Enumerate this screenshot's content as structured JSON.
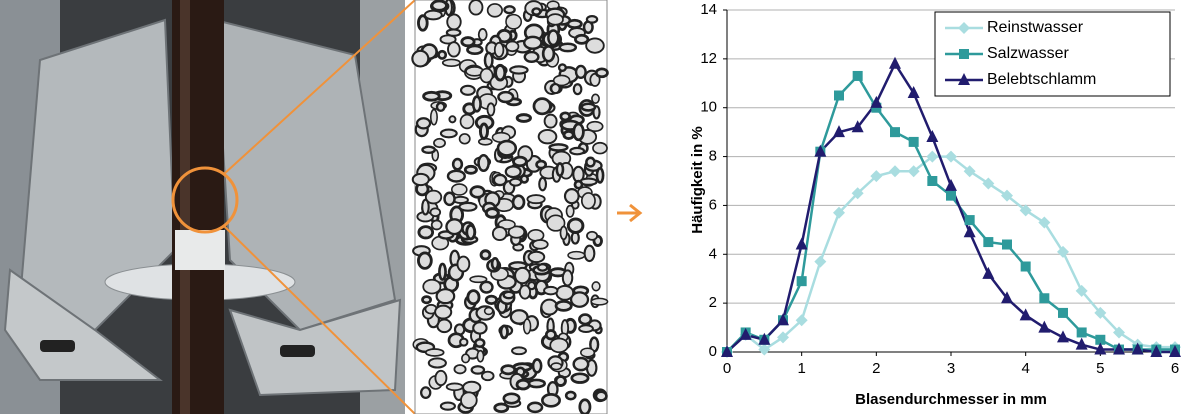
{
  "chart_data": {
    "type": "line",
    "xlabel": "Blasendurchmesser in mm",
    "ylabel": "Häufigkeit  in %",
    "x": [
      0,
      0.25,
      0.5,
      0.75,
      1,
      1.25,
      1.5,
      1.75,
      2,
      2.25,
      2.5,
      2.75,
      3,
      3.25,
      3.5,
      3.75,
      4,
      4.25,
      4.5,
      4.75,
      5,
      5.25,
      5.5,
      5.75,
      6
    ],
    "series": [
      {
        "name": "Reinstwasser",
        "color": "#a9dde0",
        "marker": "diamond",
        "values": [
          0,
          0.7,
          0.1,
          0.6,
          1.3,
          3.7,
          5.7,
          6.5,
          7.2,
          7.4,
          7.4,
          8.0,
          8.0,
          7.4,
          6.9,
          6.4,
          5.8,
          5.3,
          4.1,
          2.5,
          1.6,
          0.8,
          0.3,
          0.2,
          0.2
        ]
      },
      {
        "name": "Salzwasser",
        "color": "#2e9a9b",
        "marker": "square",
        "values": [
          0,
          0.8,
          0.5,
          1.3,
          2.9,
          8.2,
          10.5,
          11.3,
          10.0,
          9.0,
          8.6,
          7.0,
          6.4,
          5.4,
          4.5,
          4.4,
          3.5,
          2.2,
          1.6,
          0.8,
          0.5,
          0.1,
          0.1,
          0.1,
          0.1
        ]
      },
      {
        "name": "Belebtschlamm",
        "color": "#211c6e",
        "marker": "triangle",
        "values": [
          0,
          0.7,
          0.5,
          1.3,
          4.4,
          8.2,
          9.0,
          9.2,
          10.2,
          11.8,
          10.6,
          8.8,
          6.8,
          4.9,
          3.2,
          2.2,
          1.5,
          1.0,
          0.6,
          0.3,
          0.1,
          0.1,
          0.1,
          0,
          0
        ]
      }
    ],
    "xlim": [
      0,
      6
    ],
    "xticks": [
      0,
      1,
      2,
      3,
      4,
      5,
      6
    ],
    "ylim": [
      0,
      14
    ],
    "yticks": [
      0,
      2,
      4,
      6,
      8,
      10,
      12,
      14
    ],
    "grid": true,
    "legend": "upper right"
  }
}
